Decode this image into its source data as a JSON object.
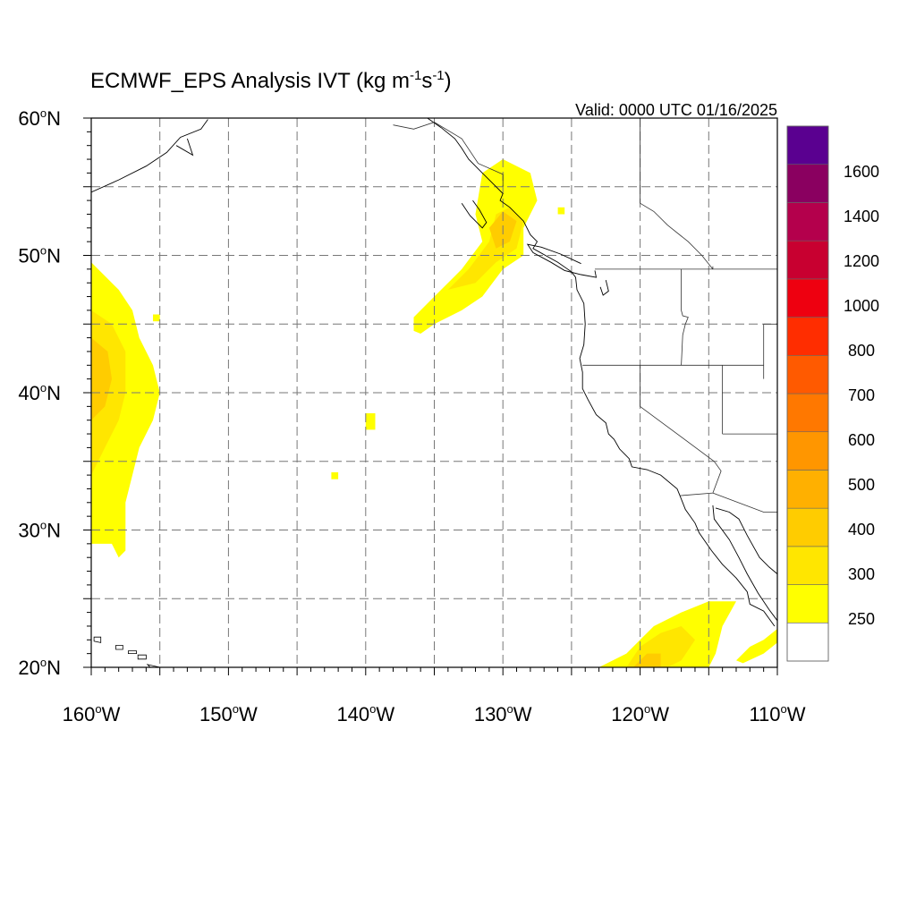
{
  "map": {
    "title_main": "ECMWF_EPS Analysis IVT (kg m",
    "title_exp1": "-1",
    "title_mid": "s",
    "title_exp2": "-1",
    "title_end": ")",
    "valid_label": "Valid: 0000 UTC 01/16/2025",
    "lon_min": -160,
    "lon_max": -110,
    "lat_min": 20,
    "lat_max": 60,
    "grid_lons": [
      -155,
      -150,
      -145,
      -140,
      -135,
      -130,
      -125,
      -120,
      -115
    ],
    "grid_lats": [
      25,
      30,
      35,
      40,
      45,
      50,
      55
    ],
    "lat_labels": [
      {
        "value": 60,
        "num": "60",
        "deg": "o",
        "hemi": "N"
      },
      {
        "value": 50,
        "num": "50",
        "deg": "o",
        "hemi": "N"
      },
      {
        "value": 40,
        "num": "40",
        "deg": "o",
        "hemi": "N"
      },
      {
        "value": 30,
        "num": "30",
        "deg": "o",
        "hemi": "N"
      },
      {
        "value": 20,
        "num": "20",
        "deg": "o",
        "hemi": "N"
      }
    ],
    "lon_labels": [
      {
        "value": -160,
        "num": "160",
        "deg": "o",
        "hemi": "W"
      },
      {
        "value": -150,
        "num": "150",
        "deg": "o",
        "hemi": "W"
      },
      {
        "value": -140,
        "num": "140",
        "deg": "o",
        "hemi": "W"
      },
      {
        "value": -130,
        "num": "130",
        "deg": "o",
        "hemi": "W"
      },
      {
        "value": -120,
        "num": "120",
        "deg": "o",
        "hemi": "W"
      },
      {
        "value": -110,
        "num": "110",
        "deg": "o",
        "hemi": "W"
      }
    ]
  },
  "colorbar": {
    "colors": [
      "#ffffff",
      "#ffff00",
      "#ffe600",
      "#ffcc00",
      "#ffb000",
      "#ff9600",
      "#ff7800",
      "#ff5a00",
      "#ff2d00",
      "#ee0010",
      "#c80030",
      "#b4004c",
      "#8a0060",
      "#5a0090"
    ],
    "labels": [
      "250",
      "300",
      "400",
      "500",
      "600",
      "700",
      "800",
      "1000",
      "1200",
      "1400",
      "1600"
    ]
  },
  "ivt_patches": [
    {
      "name": "western-plume",
      "poly": [
        [
          -160,
          49.5
        ],
        [
          -159,
          48.5
        ],
        [
          -158,
          47.5
        ],
        [
          -157,
          46
        ],
        [
          -156.5,
          44
        ],
        [
          -155.5,
          42
        ],
        [
          -155,
          40
        ],
        [
          -155.5,
          38
        ],
        [
          -156.5,
          36
        ],
        [
          -157,
          34
        ],
        [
          -157.5,
          32
        ],
        [
          -157.5,
          30
        ],
        [
          -157.5,
          28.5
        ],
        [
          -158,
          28
        ],
        [
          -158.5,
          29
        ],
        [
          -159,
          29
        ],
        [
          -160,
          29
        ]
      ],
      "level": 1
    },
    {
      "name": "western-core",
      "poly": [
        [
          -160,
          46
        ],
        [
          -158.5,
          45
        ],
        [
          -157.5,
          43
        ],
        [
          -157.5,
          40
        ],
        [
          -158,
          38
        ],
        [
          -159,
          36
        ],
        [
          -160,
          34
        ]
      ],
      "level": 2
    },
    {
      "name": "western-inner",
      "poly": [
        [
          -160,
          44
        ],
        [
          -158.8,
          43
        ],
        [
          -158.5,
          41
        ],
        [
          -159,
          39
        ],
        [
          -160,
          38
        ]
      ],
      "level": 3
    },
    {
      "name": "western-speck",
      "poly": [
        [
          -155.5,
          45.7
        ],
        [
          -155,
          45.7
        ],
        [
          -155,
          45.2
        ],
        [
          -155.5,
          45.2
        ]
      ],
      "level": 1
    },
    {
      "name": "pnw-plume",
      "poly": [
        [
          -136.5,
          44.5
        ],
        [
          -136.5,
          45.5
        ],
        [
          -135,
          47
        ],
        [
          -133,
          49
        ],
        [
          -131.5,
          51
        ],
        [
          -132,
          53
        ],
        [
          -131.5,
          56
        ],
        [
          -130,
          57
        ],
        [
          -128,
          56
        ],
        [
          -127.5,
          54
        ],
        [
          -128.5,
          52
        ],
        [
          -128.5,
          50
        ],
        [
          -130,
          49
        ],
        [
          -131.5,
          47
        ],
        [
          -133,
          46
        ],
        [
          -135,
          45
        ],
        [
          -136,
          44.3
        ]
      ],
      "level": 1
    },
    {
      "name": "pnw-core",
      "poly": [
        [
          -134,
          47.5
        ],
        [
          -132.5,
          49
        ],
        [
          -131,
          51
        ],
        [
          -130.5,
          53
        ],
        [
          -129.5,
          53.5
        ],
        [
          -128.5,
          52.5
        ],
        [
          -129,
          50.5
        ],
        [
          -130.5,
          49.5
        ],
        [
          -132,
          48
        ]
      ],
      "level": 2
    },
    {
      "name": "pnw-inner",
      "poly": [
        [
          -131,
          52
        ],
        [
          -130,
          53.2
        ],
        [
          -129,
          52.5
        ],
        [
          -129.5,
          51
        ],
        [
          -130.5,
          50.5
        ]
      ],
      "level": 3
    },
    {
      "name": "pnw-speck",
      "poly": [
        [
          -126,
          53.5
        ],
        [
          -125.5,
          53.5
        ],
        [
          -125.5,
          53
        ],
        [
          -126,
          53
        ]
      ],
      "level": 1
    },
    {
      "name": "central-speck-a",
      "poly": [
        [
          -140,
          38.5
        ],
        [
          -139.3,
          38.5
        ],
        [
          -139.3,
          37.3
        ],
        [
          -140,
          37.3
        ]
      ],
      "level": 1
    },
    {
      "name": "central-speck-b",
      "poly": [
        [
          -142.5,
          34.2
        ],
        [
          -142,
          34.2
        ],
        [
          -142,
          33.7
        ],
        [
          -142.5,
          33.7
        ]
      ],
      "level": 1
    },
    {
      "name": "southern-plume",
      "poly": [
        [
          -123,
          20
        ],
        [
          -121,
          21
        ],
        [
          -120,
          22
        ],
        [
          -119,
          23
        ],
        [
          -117,
          24
        ],
        [
          -115,
          24.8
        ],
        [
          -113,
          24.8
        ],
        [
          -114,
          23
        ],
        [
          -114.5,
          21
        ],
        [
          -115,
          20
        ]
      ],
      "level": 1
    },
    {
      "name": "southern-core",
      "poly": [
        [
          -121,
          20
        ],
        [
          -120,
          21.5
        ],
        [
          -118.5,
          22.5
        ],
        [
          -117,
          23
        ],
        [
          -116,
          22
        ],
        [
          -117,
          20.5
        ],
        [
          -118,
          20
        ]
      ],
      "level": 2
    },
    {
      "name": "southern-inner",
      "poly": [
        [
          -120.5,
          20
        ],
        [
          -119.5,
          21
        ],
        [
          -118.5,
          21
        ],
        [
          -118.5,
          20
        ]
      ],
      "level": 3
    },
    {
      "name": "southern-east-strip",
      "poly": [
        [
          -113,
          20.5
        ],
        [
          -112,
          21.5
        ],
        [
          -111,
          22
        ],
        [
          -110,
          22.8
        ],
        [
          -110,
          21.8
        ],
        [
          -111,
          21
        ],
        [
          -112.5,
          20.3
        ]
      ],
      "level": 1
    }
  ],
  "coast": [
    [
      [
        -135.5,
        60
      ],
      [
        -134.5,
        59.3
      ],
      [
        -133.5,
        58.5
      ],
      [
        -133,
        57.8
      ],
      [
        -132.5,
        57
      ],
      [
        -131.5,
        56
      ],
      [
        -130.8,
        55.3
      ],
      [
        -130,
        54.5
      ],
      [
        -130.2,
        54
      ],
      [
        -129.5,
        53.5
      ],
      [
        -128.5,
        52.5
      ],
      [
        -128,
        51.5
      ],
      [
        -127.5,
        51
      ],
      [
        -127.8,
        50.5
      ],
      [
        -126,
        49.5
      ],
      [
        -125,
        48.8
      ],
      [
        -124.7,
        48.4
      ],
      [
        -124.6,
        47.5
      ],
      [
        -124.1,
        46.5
      ],
      [
        -124,
        45
      ],
      [
        -124.1,
        43.5
      ],
      [
        -124.4,
        42.5
      ],
      [
        -124.2,
        41.5
      ],
      [
        -124.2,
        40.3
      ],
      [
        -123.8,
        39.5
      ],
      [
        -123.2,
        38.4
      ],
      [
        -122.5,
        37.8
      ],
      [
        -122.3,
        37
      ],
      [
        -121.9,
        36.6
      ],
      [
        -121.5,
        35.9
      ],
      [
        -120.8,
        35.2
      ],
      [
        -120.6,
        34.6
      ],
      [
        -119.5,
        34.4
      ],
      [
        -118.5,
        34
      ],
      [
        -117.3,
        33
      ],
      [
        -117.1,
        32.5
      ],
      [
        -116.7,
        31.5
      ],
      [
        -116,
        30.5
      ],
      [
        -115.7,
        29.8
      ],
      [
        -114.8,
        28.5
      ],
      [
        -114,
        27.5
      ],
      [
        -113,
        26.5
      ],
      [
        -112.2,
        25.5
      ],
      [
        -112,
        24.6
      ],
      [
        -111,
        24.1
      ],
      [
        -110.2,
        23
      ]
    ],
    [
      [
        -110,
        23.4
      ],
      [
        -110.6,
        24.2
      ],
      [
        -111.4,
        25.4
      ],
      [
        -112.2,
        26.8
      ],
      [
        -112.8,
        28
      ],
      [
        -113.5,
        29.3
      ],
      [
        -114.6,
        30.8
      ],
      [
        -114.7,
        31.8
      ]
    ],
    [
      [
        -114.5,
        31.6
      ],
      [
        -113.5,
        31.3
      ],
      [
        -112.8,
        30.8
      ],
      [
        -112.2,
        29.6
      ],
      [
        -111.3,
        28
      ],
      [
        -110.6,
        27.3
      ],
      [
        -110,
        26.8
      ]
    ],
    [
      [
        -160,
        54.6
      ],
      [
        -158,
        55.5
      ],
      [
        -156,
        56.5
      ],
      [
        -154.5,
        57.5
      ],
      [
        -153.5,
        58.6
      ],
      [
        -152,
        59.2
      ],
      [
        -151.5,
        59.9
      ]
    ],
    [
      [
        -153.8,
        58
      ],
      [
        -152.6,
        57.3
      ],
      [
        -153,
        58.5
      ]
    ],
    [
      [
        -110,
        55.5
      ],
      [
        -109.5,
        55.8
      ]
    ],
    [
      [
        -123.3,
        48.9
      ],
      [
        -123.2,
        48.4
      ],
      [
        -124.3,
        48.6
      ],
      [
        -125.5,
        48.9
      ],
      [
        -126.5,
        49.5
      ],
      [
        -127.8,
        50.2
      ],
      [
        -128.2,
        50.8
      ],
      [
        -127.2,
        50.6
      ],
      [
        -125.8,
        50.1
      ],
      [
        -124.3,
        49.4
      ]
    ],
    [
      [
        -132.2,
        54
      ],
      [
        -131.7,
        53.3
      ],
      [
        -131.2,
        52.4
      ],
      [
        -131.5,
        52
      ],
      [
        -132.4,
        52.9
      ],
      [
        -133,
        53.8
      ]
    ],
    [
      [
        -122.5,
        48.2
      ],
      [
        -122.3,
        47.4
      ],
      [
        -122.7,
        47.1
      ],
      [
        -122.9,
        47.7
      ]
    ]
  ],
  "islands": [
    [
      [
        -159.8,
        22.2
      ],
      [
        -159.3,
        22.2
      ],
      [
        -159.3,
        21.8
      ],
      [
        -159.8,
        21.9
      ]
    ],
    [
      [
        -158.2,
        21.6
      ],
      [
        -157.7,
        21.6
      ],
      [
        -157.7,
        21.3
      ],
      [
        -158.2,
        21.3
      ]
    ],
    [
      [
        -157.3,
        21.2
      ],
      [
        -156.7,
        21.2
      ],
      [
        -156.7,
        21
      ],
      [
        -157.3,
        21
      ]
    ],
    [
      [
        -156.6,
        20.9
      ],
      [
        -156,
        20.9
      ],
      [
        -156,
        20.6
      ],
      [
        -156.6,
        20.6
      ]
    ],
    [
      [
        -155.9,
        20.2
      ],
      [
        -155,
        20
      ],
      [
        -155.5,
        19.8
      ]
    ]
  ],
  "borders": [
    [
      [
        -123.3,
        49
      ],
      [
        -110,
        49
      ]
    ],
    [
      [
        -117,
        49
      ],
      [
        -117,
        46
      ],
      [
        -116.9,
        45.6
      ],
      [
        -116.5,
        45.5
      ],
      [
        -116.7,
        45
      ],
      [
        -116.9,
        44.2
      ],
      [
        -117,
        42
      ]
    ],
    [
      [
        -124.2,
        42
      ],
      [
        -111,
        42
      ]
    ],
    [
      [
        -120,
        42
      ],
      [
        -120,
        39
      ],
      [
        -114.6,
        35
      ]
    ],
    [
      [
        -114.6,
        35
      ],
      [
        -114.1,
        34.3
      ],
      [
        -114.7,
        32.7
      ],
      [
        -117.1,
        32.5
      ]
    ],
    [
      [
        -114.7,
        32.7
      ],
      [
        -111,
        31.3
      ],
      [
        -108.2,
        31.3
      ]
    ],
    [
      [
        -111,
        45
      ],
      [
        -110,
        45
      ]
    ],
    [
      [
        -111,
        45
      ],
      [
        -111,
        41
      ]
    ],
    [
      [
        -114,
        42
      ],
      [
        -114,
        37
      ]
    ],
    [
      [
        -114,
        37
      ],
      [
        -110,
        37
      ]
    ],
    [
      [
        -120,
        60
      ],
      [
        -120,
        53.8
      ],
      [
        -119,
        53.2
      ],
      [
        -118,
        52.2
      ],
      [
        -116.5,
        51
      ],
      [
        -115.5,
        50
      ],
      [
        -114.7,
        49
      ]
    ],
    [
      [
        -114.7,
        49
      ],
      [
        -114.7,
        49.2
      ]
    ],
    [
      [
        -138,
        59.5
      ],
      [
        -136.5,
        59.2
      ],
      [
        -135,
        59.7
      ],
      [
        -133,
        58.5
      ],
      [
        -131.8,
        56.7
      ],
      [
        -130,
        55.9
      ],
      [
        -130,
        55
      ]
    ]
  ]
}
